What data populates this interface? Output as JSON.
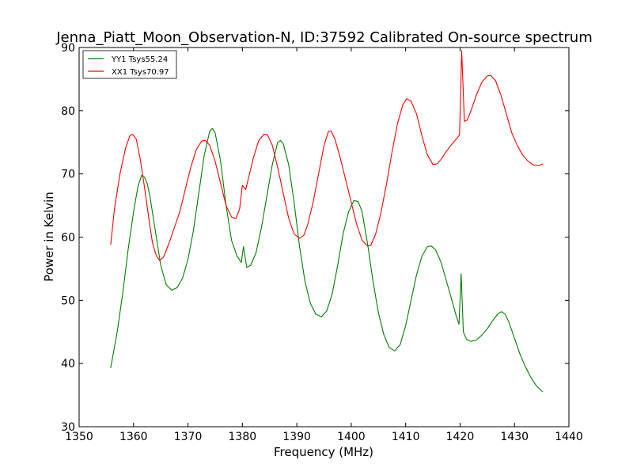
{
  "chart_data": {
    "type": "line",
    "title": "Jenna_Piatt_Moon_Observation-N, ID:37592 Calibrated On-source spectrum",
    "xlabel": "Frequency (MHz)",
    "ylabel": "Power in Kelvin",
    "xlim": [
      1350,
      1440
    ],
    "ylim": [
      30,
      90
    ],
    "xticks": [
      1350,
      1360,
      1370,
      1380,
      1390,
      1400,
      1410,
      1420,
      1430,
      1440
    ],
    "yticks": [
      30,
      40,
      50,
      60,
      70,
      80,
      90
    ],
    "grid": false,
    "legend_position": "top-left",
    "series": [
      {
        "name": "YY1 Tsys55.24",
        "color": "#008000",
        "points": [
          [
            1355.8,
            39.3
          ],
          [
            1357,
            45
          ],
          [
            1358,
            51
          ],
          [
            1359,
            58
          ],
          [
            1360,
            64
          ],
          [
            1360.8,
            68
          ],
          [
            1361.5,
            69.8
          ],
          [
            1362,
            69.5
          ],
          [
            1362.5,
            68.5
          ],
          [
            1363,
            66.5
          ],
          [
            1364,
            61
          ],
          [
            1365,
            55.5
          ],
          [
            1366,
            52.5
          ],
          [
            1367,
            51.6
          ],
          [
            1368,
            52
          ],
          [
            1369,
            53.5
          ],
          [
            1370,
            56.5
          ],
          [
            1371,
            61
          ],
          [
            1372,
            67
          ],
          [
            1373,
            73
          ],
          [
            1374,
            76.8
          ],
          [
            1374.5,
            77.2
          ],
          [
            1375,
            76.5
          ],
          [
            1376,
            72
          ],
          [
            1377,
            65
          ],
          [
            1378,
            59.5
          ],
          [
            1379,
            57
          ],
          [
            1379.8,
            56
          ],
          [
            1380.2,
            58.5
          ],
          [
            1380.8,
            55.2
          ],
          [
            1381.5,
            55.5
          ],
          [
            1382.5,
            57.5
          ],
          [
            1383.5,
            61.5
          ],
          [
            1384.5,
            66.5
          ],
          [
            1385.5,
            71.5
          ],
          [
            1386.5,
            75
          ],
          [
            1387,
            75.3
          ],
          [
            1387.5,
            74.8
          ],
          [
            1388.5,
            71.5
          ],
          [
            1389.5,
            65.5
          ],
          [
            1390.5,
            58.5
          ],
          [
            1391.5,
            53
          ],
          [
            1392.5,
            49.5
          ],
          [
            1393.5,
            47.8
          ],
          [
            1394.5,
            47.4
          ],
          [
            1395.5,
            48.3
          ],
          [
            1396.5,
            51
          ],
          [
            1397.5,
            55.5
          ],
          [
            1398.5,
            60.5
          ],
          [
            1399.5,
            64
          ],
          [
            1400.5,
            65.8
          ],
          [
            1401.3,
            65.6
          ],
          [
            1402,
            64
          ],
          [
            1403,
            59
          ],
          [
            1404,
            53
          ],
          [
            1405,
            48
          ],
          [
            1406,
            44.5
          ],
          [
            1407,
            42.5
          ],
          [
            1408,
            42
          ],
          [
            1409,
            43
          ],
          [
            1410,
            46
          ],
          [
            1411,
            50
          ],
          [
            1412,
            54
          ],
          [
            1413,
            57
          ],
          [
            1414,
            58.5
          ],
          [
            1414.7,
            58.6
          ],
          [
            1415.5,
            58
          ],
          [
            1416.5,
            56
          ],
          [
            1417.5,
            53
          ],
          [
            1418.5,
            50
          ],
          [
            1419.3,
            47.5
          ],
          [
            1419.8,
            46.2
          ],
          [
            1420.2,
            54.2
          ],
          [
            1420.6,
            45
          ],
          [
            1421.2,
            43.8
          ],
          [
            1422,
            43.5
          ],
          [
            1423,
            43.7
          ],
          [
            1424,
            44.5
          ],
          [
            1425,
            45.5
          ],
          [
            1426,
            46.8
          ],
          [
            1427,
            47.9
          ],
          [
            1427.6,
            48.2
          ],
          [
            1428.3,
            47.8
          ],
          [
            1429,
            46.5
          ],
          [
            1430,
            44
          ],
          [
            1431,
            41.5
          ],
          [
            1432,
            39.5
          ],
          [
            1433,
            37.8
          ],
          [
            1434,
            36.5
          ],
          [
            1435.2,
            35.5
          ]
        ]
      },
      {
        "name": "XX1 Tsys70.97",
        "color": "#ff0000",
        "points": [
          [
            1355.8,
            58.8
          ],
          [
            1356.5,
            64.5
          ],
          [
            1357.5,
            70
          ],
          [
            1358.5,
            74
          ],
          [
            1359.3,
            76
          ],
          [
            1359.8,
            76.3
          ],
          [
            1360.5,
            75.5
          ],
          [
            1361.2,
            72.5
          ],
          [
            1362,
            68
          ],
          [
            1362.8,
            63
          ],
          [
            1363.5,
            59
          ],
          [
            1364.2,
            57
          ],
          [
            1364.8,
            56.3
          ],
          [
            1365.5,
            56.8
          ],
          [
            1366.5,
            59
          ],
          [
            1367.5,
            61.5
          ],
          [
            1368.5,
            64
          ],
          [
            1369.5,
            67.5
          ],
          [
            1370.5,
            71
          ],
          [
            1371.5,
            73.8
          ],
          [
            1372.5,
            75.2
          ],
          [
            1373.2,
            75.3
          ],
          [
            1374,
            74.5
          ],
          [
            1375,
            72
          ],
          [
            1376,
            68.5
          ],
          [
            1377,
            65
          ],
          [
            1378,
            63.2
          ],
          [
            1378.8,
            62.9
          ],
          [
            1379.5,
            64.5
          ],
          [
            1380,
            68.2
          ],
          [
            1380.6,
            67.5
          ],
          [
            1381.3,
            70
          ],
          [
            1382,
            72.5
          ],
          [
            1383,
            75.3
          ],
          [
            1384,
            76.3
          ],
          [
            1384.6,
            76.2
          ],
          [
            1385.5,
            74.5
          ],
          [
            1386.5,
            71
          ],
          [
            1387.5,
            67
          ],
          [
            1388.5,
            63
          ],
          [
            1389.5,
            60.5
          ],
          [
            1390.5,
            59.8
          ],
          [
            1391.3,
            60.3
          ],
          [
            1392,
            62
          ],
          [
            1393,
            65.5
          ],
          [
            1394,
            70
          ],
          [
            1395,
            74.5
          ],
          [
            1395.8,
            76.7
          ],
          [
            1396.3,
            76.8
          ],
          [
            1397,
            75.5
          ],
          [
            1398,
            72.5
          ],
          [
            1399,
            69
          ],
          [
            1400,
            65.5
          ],
          [
            1401,
            62
          ],
          [
            1402,
            59.5
          ],
          [
            1403,
            58.6
          ],
          [
            1403.6,
            58.7
          ],
          [
            1404.5,
            60.5
          ],
          [
            1405.5,
            64
          ],
          [
            1406.5,
            68.5
          ],
          [
            1407.5,
            73.5
          ],
          [
            1408.5,
            78
          ],
          [
            1409.5,
            81
          ],
          [
            1410.2,
            81.9
          ],
          [
            1411,
            81.5
          ],
          [
            1412,
            79.5
          ],
          [
            1413,
            76
          ],
          [
            1414,
            73
          ],
          [
            1415,
            71.5
          ],
          [
            1415.8,
            71.6
          ],
          [
            1416.5,
            72.3
          ],
          [
            1417.5,
            73.6
          ],
          [
            1418.5,
            74.7
          ],
          [
            1419.5,
            75.7
          ],
          [
            1419.9,
            76.2
          ],
          [
            1420.3,
            89.5
          ],
          [
            1420.8,
            78.3
          ],
          [
            1421.3,
            78.5
          ],
          [
            1422,
            80
          ],
          [
            1423,
            82.5
          ],
          [
            1424,
            84.5
          ],
          [
            1425,
            85.5
          ],
          [
            1425.6,
            85.6
          ],
          [
            1426.5,
            84.8
          ],
          [
            1427.5,
            82.5
          ],
          [
            1428.5,
            79.5
          ],
          [
            1429.5,
            76.5
          ],
          [
            1430.5,
            74.5
          ],
          [
            1431.5,
            73
          ],
          [
            1432.5,
            72
          ],
          [
            1433.5,
            71.4
          ],
          [
            1434.5,
            71.3
          ],
          [
            1435.2,
            71.6
          ]
        ]
      }
    ]
  }
}
